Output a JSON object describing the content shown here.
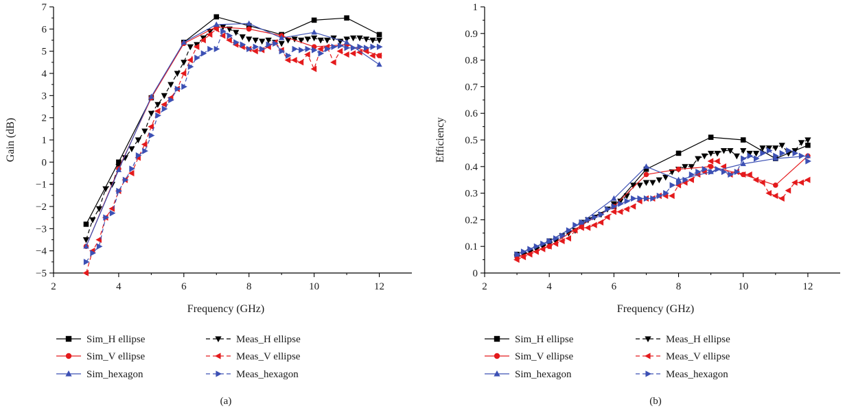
{
  "chart_data": [
    {
      "type": "line",
      "panel_label": "(a)",
      "xlabel": "Frequency (GHz)",
      "ylabel": "Gain (dB)",
      "xlim": [
        2,
        13
      ],
      "ylim": [
        -5,
        7
      ],
      "xticks": [
        2,
        4,
        6,
        8,
        10,
        12
      ],
      "yticks": [
        -5,
        -4,
        -3,
        -2,
        -1,
        0,
        1,
        2,
        3,
        4,
        5,
        6,
        7
      ],
      "grid": false,
      "legend_position": "bottom",
      "series": [
        {
          "name": "Sim_H ellipse",
          "color": "#000000",
          "dash": "solid",
          "marker": "square",
          "x": [
            3,
            4,
            5,
            6,
            7,
            8,
            9,
            10,
            11,
            12
          ],
          "y": [
            -2.8,
            0,
            2.9,
            5.4,
            6.55,
            6.15,
            5.75,
            6.4,
            6.5,
            5.75
          ]
        },
        {
          "name": "Meas_H ellipse",
          "color": "#000000",
          "dash": "dashed",
          "marker": "triangle-down",
          "x": [
            3,
            3.2,
            3.4,
            3.6,
            3.8,
            4,
            4.2,
            4.4,
            4.6,
            4.8,
            5,
            5.2,
            5.4,
            5.6,
            5.8,
            6,
            6.2,
            6.4,
            6.6,
            6.8,
            7,
            7.2,
            7.4,
            7.6,
            7.8,
            8,
            8.2,
            8.4,
            8.6,
            8.8,
            9,
            9.2,
            9.4,
            9.6,
            9.8,
            10,
            10.2,
            10.4,
            10.6,
            10.8,
            11,
            11.2,
            11.4,
            11.6,
            11.8,
            12
          ],
          "y": [
            -3.5,
            -2.6,
            -2.1,
            -1.2,
            -1,
            -0.2,
            0.2,
            0.6,
            1,
            1.4,
            2.2,
            2.6,
            3,
            3.5,
            4,
            4.5,
            5.2,
            5.3,
            5.6,
            5.9,
            6.05,
            6.1,
            6,
            5.85,
            5.65,
            5.55,
            5.5,
            5.45,
            5.5,
            5.4,
            5.35,
            5.5,
            5.55,
            5.5,
            5.55,
            5.6,
            5.5,
            5.5,
            5.6,
            5.45,
            5.55,
            5.6,
            5.6,
            5.55,
            5.5,
            5.5
          ]
        },
        {
          "name": "Sim_V ellipse",
          "color": "#e41a1c",
          "dash": "solid",
          "marker": "circle",
          "x": [
            3,
            4,
            5,
            6,
            7,
            8,
            9,
            10,
            11,
            12
          ],
          "y": [
            -3.8,
            -0.3,
            2.9,
            5.35,
            6.1,
            6.0,
            5.7,
            5.2,
            5.3,
            4.8
          ]
        },
        {
          "name": "Meas_V ellipse",
          "color": "#e41a1c",
          "dash": "dashed",
          "marker": "triangle-left",
          "x": [
            3,
            3.2,
            3.4,
            3.6,
            3.8,
            4,
            4.2,
            4.4,
            4.6,
            4.8,
            5,
            5.2,
            5.4,
            5.6,
            5.8,
            6,
            6.2,
            6.4,
            6.6,
            6.8,
            7,
            7.2,
            7.4,
            7.6,
            7.8,
            8,
            8.2,
            8.4,
            8.6,
            8.8,
            9,
            9.2,
            9.4,
            9.6,
            9.8,
            10,
            10.2,
            10.4,
            10.6,
            10.8,
            11,
            11.2,
            11.4,
            11.6,
            11.8,
            12
          ],
          "y": [
            -5,
            -4,
            -3.5,
            -2.5,
            -2.1,
            -1.3,
            -0.8,
            -0.5,
            0.2,
            0.8,
            1.6,
            2.3,
            2.6,
            2.9,
            3.3,
            4,
            4.6,
            5.2,
            5.5,
            5.75,
            6,
            5.7,
            5.5,
            5.3,
            5.2,
            5.1,
            5,
            5.05,
            5.2,
            5.4,
            5.05,
            4.6,
            4.6,
            4.5,
            4.85,
            4.2,
            5.1,
            5.2,
            4.5,
            5,
            4.85,
            4.9,
            4.95,
            5.0,
            4.8,
            4.8
          ]
        },
        {
          "name": "Sim_hexagon",
          "color": "#3c50b4",
          "dash": "solid",
          "marker": "triangle-up",
          "x": [
            3,
            4,
            5,
            6,
            7,
            8,
            9,
            10,
            11,
            12
          ],
          "y": [
            -3.8,
            -0.35,
            2.95,
            5.4,
            6.2,
            6.25,
            5.6,
            5.85,
            5.4,
            4.4
          ]
        },
        {
          "name": "Meas_hexagon",
          "color": "#3c50b4",
          "dash": "dashed",
          "marker": "triangle-right",
          "x": [
            3,
            3.2,
            3.4,
            3.6,
            3.8,
            4,
            4.2,
            4.4,
            4.6,
            4.8,
            5,
            5.2,
            5.4,
            5.6,
            5.8,
            6,
            6.2,
            6.4,
            6.6,
            6.8,
            7,
            7.2,
            7.4,
            7.6,
            7.8,
            8,
            8.2,
            8.4,
            8.6,
            8.8,
            9,
            9.2,
            9.4,
            9.6,
            9.8,
            10,
            10.2,
            10.4,
            10.6,
            10.8,
            11,
            11.2,
            11.4,
            11.6,
            11.8,
            12
          ],
          "y": [
            -4.5,
            -4.1,
            -3.8,
            -2.5,
            -2.3,
            -1.3,
            -0.8,
            -0.3,
            0.3,
            0.5,
            1.2,
            2.1,
            2.4,
            2.8,
            3.3,
            3.4,
            4.3,
            4.7,
            4.9,
            5.1,
            5.1,
            5.9,
            5.7,
            5.4,
            5.3,
            5.1,
            5.2,
            5.1,
            5.3,
            5.35,
            5.0,
            4.8,
            5.1,
            5.05,
            5.1,
            5.05,
            4.9,
            5.1,
            5.2,
            5.25,
            5.15,
            5.15,
            5.2,
            5.15,
            5.2,
            5.2
          ]
        }
      ]
    },
    {
      "type": "line",
      "panel_label": "(b)",
      "xlabel": "Frequency (GHz)",
      "ylabel": "Efficiency",
      "xlim": [
        2,
        13
      ],
      "ylim": [
        0,
        1
      ],
      "xticks": [
        2,
        4,
        6,
        8,
        10,
        12
      ],
      "yticks": [
        0,
        0.1,
        0.2,
        0.3,
        0.4,
        0.5,
        0.6,
        0.7,
        0.8,
        0.9,
        1
      ],
      "grid": false,
      "legend_position": "bottom",
      "series": [
        {
          "name": "Sim_H ellipse",
          "color": "#000000",
          "dash": "solid",
          "marker": "square",
          "x": [
            3,
            4,
            5,
            6,
            7,
            8,
            9,
            10,
            11,
            12
          ],
          "y": [
            0.07,
            0.12,
            0.19,
            0.25,
            0.39,
            0.45,
            0.51,
            0.5,
            0.43,
            0.48
          ]
        },
        {
          "name": "Meas_H ellipse",
          "color": "#000000",
          "dash": "dashed",
          "marker": "triangle-down",
          "x": [
            3,
            3.2,
            3.4,
            3.6,
            3.8,
            4,
            4.2,
            4.4,
            4.6,
            4.8,
            5,
            5.2,
            5.4,
            5.6,
            5.8,
            6,
            6.2,
            6.4,
            6.6,
            6.8,
            7,
            7.2,
            7.4,
            7.6,
            7.8,
            8,
            8.2,
            8.4,
            8.6,
            8.8,
            9,
            9.2,
            9.4,
            9.6,
            9.8,
            10,
            10.2,
            10.4,
            10.6,
            10.8,
            11,
            11.2,
            11.4,
            11.6,
            11.8,
            12
          ],
          "y": [
            0.06,
            0.07,
            0.08,
            0.09,
            0.1,
            0.11,
            0.12,
            0.14,
            0.15,
            0.16,
            0.18,
            0.2,
            0.21,
            0.22,
            0.24,
            0.26,
            0.27,
            0.29,
            0.33,
            0.33,
            0.34,
            0.34,
            0.35,
            0.36,
            0.38,
            0.39,
            0.4,
            0.4,
            0.43,
            0.44,
            0.45,
            0.45,
            0.46,
            0.46,
            0.44,
            0.46,
            0.45,
            0.45,
            0.47,
            0.47,
            0.47,
            0.48,
            0.45,
            0.46,
            0.49,
            0.5
          ]
        },
        {
          "name": "Sim_V ellipse",
          "color": "#e41a1c",
          "dash": "solid",
          "marker": "circle",
          "x": [
            3,
            4,
            5,
            6,
            7,
            8,
            9,
            10,
            11,
            12
          ],
          "y": [
            0.06,
            0.1,
            0.18,
            0.25,
            0.37,
            0.39,
            0.4,
            0.37,
            0.33,
            0.44
          ]
        },
        {
          "name": "Meas_V ellipse",
          "color": "#e41a1c",
          "dash": "dashed",
          "marker": "triangle-left",
          "x": [
            3,
            3.2,
            3.4,
            3.6,
            3.8,
            4,
            4.2,
            4.4,
            4.6,
            4.8,
            5,
            5.2,
            5.4,
            5.6,
            5.8,
            6,
            6.2,
            6.4,
            6.6,
            6.8,
            7,
            7.2,
            7.4,
            7.6,
            7.8,
            8,
            8.2,
            8.4,
            8.6,
            8.8,
            9,
            9.2,
            9.4,
            9.6,
            9.8,
            10,
            10.2,
            10.4,
            10.6,
            10.8,
            11,
            11.2,
            11.4,
            11.6,
            11.8,
            12
          ],
          "y": [
            0.05,
            0.06,
            0.07,
            0.08,
            0.09,
            0.1,
            0.11,
            0.12,
            0.13,
            0.16,
            0.17,
            0.17,
            0.18,
            0.19,
            0.21,
            0.23,
            0.23,
            0.24,
            0.25,
            0.27,
            0.28,
            0.28,
            0.29,
            0.29,
            0.29,
            0.33,
            0.34,
            0.35,
            0.37,
            0.38,
            0.42,
            0.42,
            0.4,
            0.37,
            0.38,
            0.37,
            0.37,
            0.35,
            0.34,
            0.3,
            0.29,
            0.28,
            0.31,
            0.34,
            0.34,
            0.35
          ]
        },
        {
          "name": "Sim_hexagon",
          "color": "#3c50b4",
          "dash": "solid",
          "marker": "triangle-up",
          "x": [
            3,
            4,
            5,
            6,
            7,
            8,
            9,
            10,
            11,
            12
          ],
          "y": [
            0.07,
            0.12,
            0.19,
            0.28,
            0.4,
            0.35,
            0.38,
            0.41,
            0.43,
            0.44
          ]
        },
        {
          "name": "Meas_hexagon",
          "color": "#3c50b4",
          "dash": "dashed",
          "marker": "triangle-right",
          "x": [
            3,
            3.2,
            3.4,
            3.6,
            3.8,
            4,
            4.2,
            4.4,
            4.6,
            4.8,
            5,
            5.2,
            5.4,
            5.6,
            5.8,
            6,
            6.2,
            6.4,
            6.6,
            6.8,
            7,
            7.2,
            7.4,
            7.6,
            7.8,
            8,
            8.2,
            8.4,
            8.6,
            8.8,
            9,
            9.2,
            9.4,
            9.6,
            9.8,
            10,
            10.2,
            10.4,
            10.6,
            10.8,
            11,
            11.2,
            11.4,
            11.6,
            11.8,
            12
          ],
          "y": [
            0.07,
            0.08,
            0.09,
            0.1,
            0.11,
            0.12,
            0.13,
            0.14,
            0.16,
            0.18,
            0.19,
            0.2,
            0.21,
            0.22,
            0.24,
            0.25,
            0.26,
            0.27,
            0.28,
            0.28,
            0.28,
            0.28,
            0.29,
            0.3,
            0.33,
            0.34,
            0.35,
            0.37,
            0.38,
            0.39,
            0.38,
            0.39,
            0.38,
            0.37,
            0.38,
            0.43,
            0.44,
            0.43,
            0.45,
            0.46,
            0.44,
            0.45,
            0.46,
            0.45,
            0.44,
            0.42
          ]
        }
      ]
    }
  ]
}
